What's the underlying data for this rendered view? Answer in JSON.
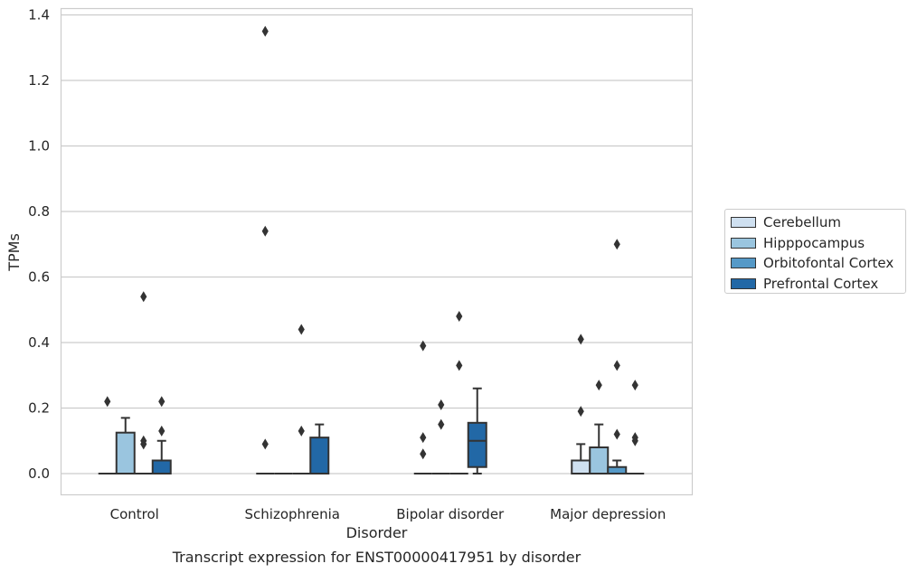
{
  "chart_data": {
    "type": "box",
    "title": "Transcript expression for ENST00000417951 by disorder",
    "xlabel": "Disorder",
    "ylabel": "TPMs",
    "ylim": [
      -0.065,
      1.42
    ],
    "yticks": [
      "0.0",
      "0.2",
      "0.4",
      "0.6",
      "0.8",
      "1.0",
      "1.2",
      "1.4"
    ],
    "grid": "horizontal",
    "legend_position": "right",
    "categories": [
      "Control",
      "Schizophrenia",
      "Bipolar disorder",
      "Major depression"
    ],
    "series": [
      {
        "name": "Cerebellum",
        "color": "#cfe0f0",
        "boxes": [
          {
            "q1": 0,
            "median": 0,
            "q3": 0,
            "whisker_low": 0,
            "whisker_high": 0,
            "outliers": [
              0.22
            ]
          },
          {
            "q1": 0,
            "median": 0,
            "q3": 0,
            "whisker_low": 0,
            "whisker_high": 0,
            "outliers": [
              0.09,
              0.74,
              1.35
            ]
          },
          {
            "q1": 0,
            "median": 0,
            "q3": 0,
            "whisker_low": 0,
            "whisker_high": 0,
            "outliers": [
              0.06,
              0.11,
              0.39
            ]
          },
          {
            "q1": 0,
            "median": 0,
            "q3": 0.04,
            "whisker_low": 0,
            "whisker_high": 0.09,
            "outliers": [
              0.19,
              0.41
            ]
          }
        ]
      },
      {
        "name": "Hipppocampus",
        "color": "#9ac5df",
        "boxes": [
          {
            "q1": 0,
            "median": 0,
            "q3": 0.125,
            "whisker_low": 0,
            "whisker_high": 0.17,
            "outliers": []
          },
          {
            "q1": 0,
            "median": 0,
            "q3": 0,
            "whisker_low": 0,
            "whisker_high": 0,
            "outliers": []
          },
          {
            "q1": 0,
            "median": 0,
            "q3": 0,
            "whisker_low": 0,
            "whisker_high": 0,
            "outliers": [
              0.15,
              0.21
            ]
          },
          {
            "q1": 0,
            "median": 0,
            "q3": 0.08,
            "whisker_low": 0,
            "whisker_high": 0.15,
            "outliers": [
              0.27
            ]
          }
        ]
      },
      {
        "name": "Orbitofontal Cortex",
        "color": "#5599c7",
        "boxes": [
          {
            "q1": 0,
            "median": 0,
            "q3": 0,
            "whisker_low": 0,
            "whisker_high": 0,
            "outliers": [
              0.09,
              0.1,
              0.54
            ]
          },
          {
            "q1": 0,
            "median": 0,
            "q3": 0,
            "whisker_low": 0,
            "whisker_high": 0,
            "outliers": [
              0.13,
              0.44
            ]
          },
          {
            "q1": 0,
            "median": 0,
            "q3": 0,
            "whisker_low": 0,
            "whisker_high": 0,
            "outliers": [
              0.33,
              0.48
            ]
          },
          {
            "q1": 0,
            "median": 0,
            "q3": 0.02,
            "whisker_low": 0,
            "whisker_high": 0.04,
            "outliers": [
              0.12,
              0.33,
              0.7
            ]
          }
        ]
      },
      {
        "name": "Prefrontal Cortex",
        "color": "#2268a6",
        "boxes": [
          {
            "q1": 0,
            "median": 0,
            "q3": 0.04,
            "whisker_low": 0,
            "whisker_high": 0.1,
            "outliers": [
              0.13,
              0.22
            ]
          },
          {
            "q1": 0,
            "median": 0,
            "q3": 0.11,
            "whisker_low": 0,
            "whisker_high": 0.15,
            "outliers": []
          },
          {
            "q1": 0.02,
            "median": 0.1,
            "q3": 0.155,
            "whisker_low": 0,
            "whisker_high": 0.26,
            "outliers": []
          },
          {
            "q1": 0,
            "median": 0,
            "q3": 0,
            "whisker_low": 0,
            "whisker_high": 0,
            "outliers": [
              0.1,
              0.11,
              0.27
            ]
          }
        ]
      }
    ]
  }
}
